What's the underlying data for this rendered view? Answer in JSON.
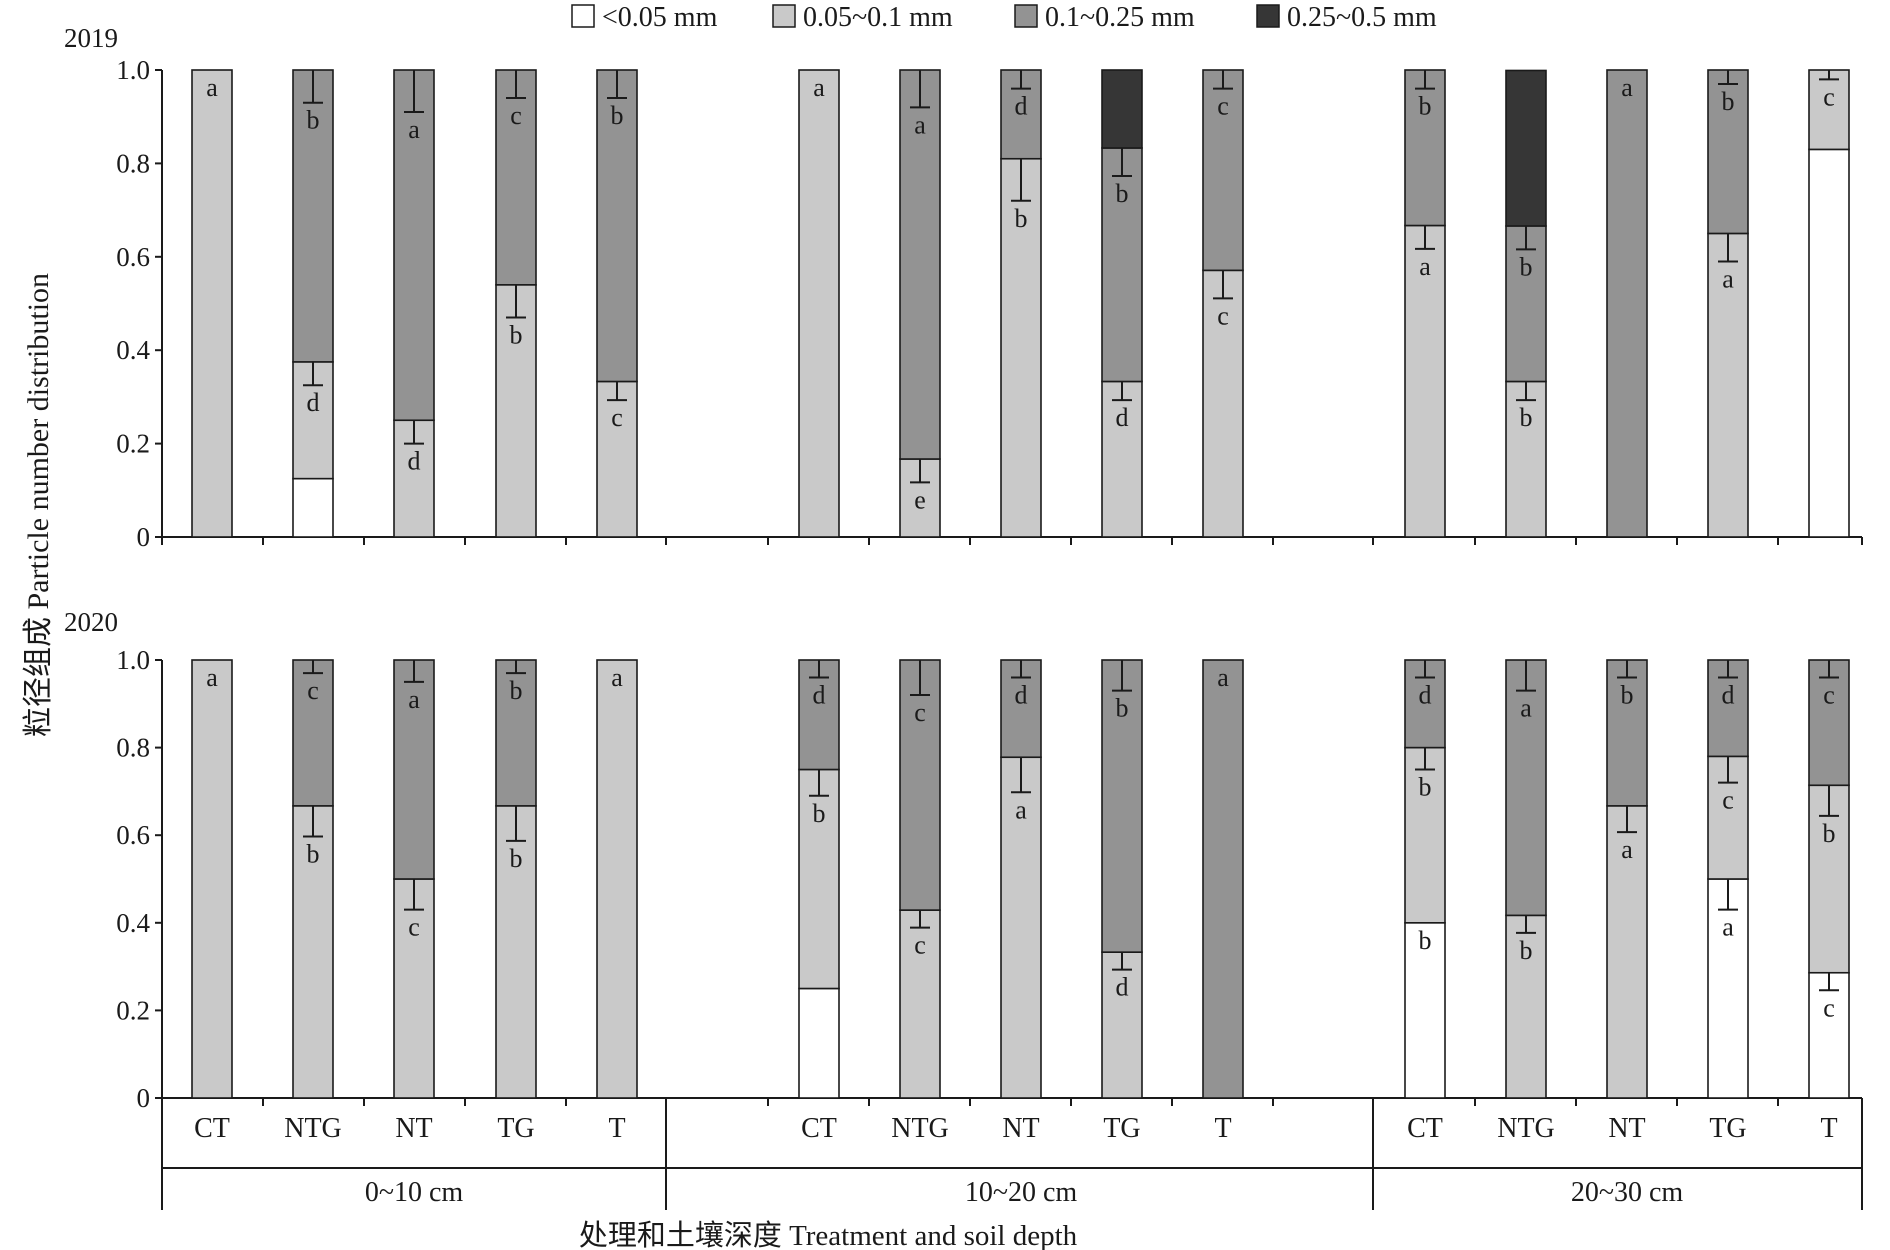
{
  "chart_data": {
    "type": "stacked-bar",
    "ylabel": "粒径组成 Particle number distribution",
    "xlabel": "处理和土壤深度 Treatment and soil depth",
    "yticks": [
      "0",
      "0.2",
      "0.4",
      "0.6",
      "0.8",
      "1.0"
    ],
    "ylim": [
      0,
      1
    ],
    "legend": {
      "placement": "top",
      "entries": [
        {
          "name": "<0.05 mm",
          "color": "#ffffff"
        },
        {
          "name": "0.05~0.1 mm",
          "color": "#c9c9c9"
        },
        {
          "name": "0.1~0.25 mm",
          "color": "#939393"
        },
        {
          "name": "0.25~0.5 mm",
          "color": "#363636"
        }
      ]
    },
    "depth_groups": [
      "0~10 cm",
      "10~20 cm",
      "20~30 cm"
    ],
    "treatments": [
      "CT",
      "NTG",
      "NT",
      "TG",
      "T"
    ],
    "panels": [
      {
        "year": "2019",
        "bars": [
          {
            "depth": "0~10 cm",
            "treatment": "CT",
            "values": [
              0,
              1.0,
              0,
              0
            ],
            "errors": [
              0,
              0,
              0,
              0
            ],
            "labels": [
              "",
              "a",
              "",
              ""
            ]
          },
          {
            "depth": "0~10 cm",
            "treatment": "NTG",
            "values": [
              0.125,
              0.25,
              0.625,
              0
            ],
            "errors": [
              0,
              0.05,
              0.07,
              0
            ],
            "labels": [
              "",
              "d",
              "b",
              ""
            ]
          },
          {
            "depth": "0~10 cm",
            "treatment": "NT",
            "values": [
              0,
              0.25,
              0.75,
              0
            ],
            "errors": [
              0,
              0.05,
              0.09,
              0
            ],
            "labels": [
              "",
              "d",
              "a",
              ""
            ]
          },
          {
            "depth": "0~10 cm",
            "treatment": "TG",
            "values": [
              0,
              0.54,
              0.46,
              0
            ],
            "errors": [
              0,
              0.07,
              0.06,
              0
            ],
            "labels": [
              "",
              "b",
              "c",
              ""
            ]
          },
          {
            "depth": "0~10 cm",
            "treatment": "T",
            "values": [
              0,
              0.333,
              0.667,
              0
            ],
            "errors": [
              0,
              0.04,
              0.06,
              0
            ],
            "labels": [
              "",
              "c",
              "b",
              ""
            ]
          },
          {
            "depth": "10~20 cm",
            "treatment": "CT",
            "values": [
              0,
              1.0,
              0,
              0
            ],
            "errors": [
              0,
              0,
              0,
              0
            ],
            "labels": [
              "",
              "a",
              "",
              ""
            ]
          },
          {
            "depth": "10~20 cm",
            "treatment": "NTG",
            "values": [
              0,
              0.167,
              0.833,
              0
            ],
            "errors": [
              0,
              0.05,
              0.08,
              0
            ],
            "labels": [
              "",
              "e",
              "a",
              ""
            ]
          },
          {
            "depth": "10~20 cm",
            "treatment": "NT",
            "values": [
              0,
              0.81,
              0.19,
              0
            ],
            "errors": [
              0,
              0.09,
              0.04,
              0
            ],
            "labels": [
              "",
              "b",
              "d",
              ""
            ]
          },
          {
            "depth": "10~20 cm",
            "treatment": "TG",
            "values": [
              0,
              0.333,
              0.5,
              0.167
            ],
            "errors": [
              0,
              0.04,
              0.06,
              0
            ],
            "labels": [
              "",
              "d",
              "b",
              ""
            ]
          },
          {
            "depth": "10~20 cm",
            "treatment": "T",
            "values": [
              0,
              0.571,
              0.429,
              0
            ],
            "errors": [
              0,
              0.06,
              0.04,
              0
            ],
            "labels": [
              "",
              "c",
              "c",
              ""
            ]
          },
          {
            "depth": "20~30 cm",
            "treatment": "CT",
            "values": [
              0,
              0.667,
              0.333,
              0
            ],
            "errors": [
              0,
              0.05,
              0.04,
              0
            ],
            "labels": [
              "",
              "a",
              "b",
              ""
            ]
          },
          {
            "depth": "20~30 cm",
            "treatment": "NTG",
            "values": [
              0,
              0.333,
              0.333,
              0.333
            ],
            "errors": [
              0,
              0.04,
              0.05,
              0
            ],
            "labels": [
              "",
              "b",
              "b",
              ""
            ]
          },
          {
            "depth": "20~30 cm",
            "treatment": "NT",
            "values": [
              0,
              0,
              1.0,
              0
            ],
            "errors": [
              0,
              0,
              0,
              0
            ],
            "labels": [
              "",
              "",
              "a",
              ""
            ]
          },
          {
            "depth": "20~30 cm",
            "treatment": "TG",
            "values": [
              0,
              0.65,
              0.35,
              0
            ],
            "errors": [
              0,
              0.06,
              0.03,
              0
            ],
            "labels": [
              "",
              "a",
              "b",
              ""
            ]
          },
          {
            "depth": "20~30 cm",
            "treatment": "T",
            "values": [
              0.83,
              0.17,
              0,
              0
            ],
            "errors": [
              0,
              0.02,
              0,
              0
            ],
            "labels": [
              "",
              "c",
              "",
              ""
            ]
          }
        ]
      },
      {
        "year": "2020",
        "bars": [
          {
            "depth": "0~10 cm",
            "treatment": "CT",
            "values": [
              0,
              1.0,
              0,
              0
            ],
            "errors": [
              0,
              0,
              0,
              0
            ],
            "labels": [
              "",
              "a",
              "",
              ""
            ]
          },
          {
            "depth": "0~10 cm",
            "treatment": "NTG",
            "values": [
              0,
              0.667,
              0.333,
              0
            ],
            "errors": [
              0,
              0.07,
              0.03,
              0
            ],
            "labels": [
              "",
              "b",
              "c",
              ""
            ]
          },
          {
            "depth": "0~10 cm",
            "treatment": "NT",
            "values": [
              0,
              0.5,
              0.5,
              0
            ],
            "errors": [
              0,
              0.07,
              0.05,
              0
            ],
            "labels": [
              "",
              "c",
              "a",
              ""
            ]
          },
          {
            "depth": "0~10 cm",
            "treatment": "TG",
            "values": [
              0,
              0.667,
              0.333,
              0
            ],
            "errors": [
              0,
              0.08,
              0.03,
              0
            ],
            "labels": [
              "",
              "b",
              "b",
              ""
            ]
          },
          {
            "depth": "0~10 cm",
            "treatment": "T",
            "values": [
              0,
              1.0,
              0,
              0
            ],
            "errors": [
              0,
              0,
              0,
              0
            ],
            "labels": [
              "",
              "a",
              "",
              ""
            ]
          },
          {
            "depth": "10~20 cm",
            "treatment": "CT",
            "values": [
              0.25,
              0.5,
              0.25,
              0
            ],
            "errors": [
              0,
              0.06,
              0.04,
              0
            ],
            "labels": [
              "",
              "b",
              "d",
              ""
            ]
          },
          {
            "depth": "10~20 cm",
            "treatment": "NTG",
            "values": [
              0,
              0.429,
              0.571,
              0
            ],
            "errors": [
              0,
              0.04,
              0.08,
              0
            ],
            "labels": [
              "",
              "c",
              "c",
              ""
            ]
          },
          {
            "depth": "10~20 cm",
            "treatment": "NT",
            "values": [
              0,
              0.778,
              0.222,
              0
            ],
            "errors": [
              0,
              0.08,
              0.04,
              0
            ],
            "labels": [
              "",
              "a",
              "d",
              ""
            ]
          },
          {
            "depth": "10~20 cm",
            "treatment": "TG",
            "values": [
              0,
              0.333,
              0.667,
              0
            ],
            "errors": [
              0,
              0.04,
              0.07,
              0
            ],
            "labels": [
              "",
              "d",
              "b",
              ""
            ]
          },
          {
            "depth": "10~20 cm",
            "treatment": "T",
            "values": [
              0,
              0,
              1.0,
              0
            ],
            "errors": [
              0,
              0,
              0,
              0
            ],
            "labels": [
              "",
              "",
              "a",
              ""
            ]
          },
          {
            "depth": "20~30 cm",
            "treatment": "CT",
            "values": [
              0.4,
              0.4,
              0.2,
              0
            ],
            "errors": [
              0,
              0.05,
              0.04,
              0
            ],
            "labels": [
              "b",
              "b",
              "d",
              ""
            ]
          },
          {
            "depth": "20~30 cm",
            "treatment": "NTG",
            "values": [
              0,
              0.417,
              0.583,
              0
            ],
            "errors": [
              0,
              0.04,
              0.07,
              0
            ],
            "labels": [
              "",
              "b",
              "a",
              ""
            ]
          },
          {
            "depth": "20~30 cm",
            "treatment": "NT",
            "values": [
              0,
              0.667,
              0.333,
              0
            ],
            "errors": [
              0,
              0.06,
              0.04,
              0
            ],
            "labels": [
              "",
              "a",
              "b",
              ""
            ]
          },
          {
            "depth": "20~30 cm",
            "treatment": "TG",
            "values": [
              0.5,
              0.28,
              0.22,
              0
            ],
            "errors": [
              0.07,
              0.06,
              0.04,
              0
            ],
            "labels": [
              "a",
              "c",
              "d",
              ""
            ]
          },
          {
            "depth": "20~30 cm",
            "treatment": "T",
            "values": [
              0.286,
              0.428,
              0.286,
              0
            ],
            "errors": [
              0.04,
              0.07,
              0.04,
              0
            ],
            "labels": [
              "c",
              "b",
              "c",
              ""
            ]
          }
        ]
      }
    ]
  }
}
